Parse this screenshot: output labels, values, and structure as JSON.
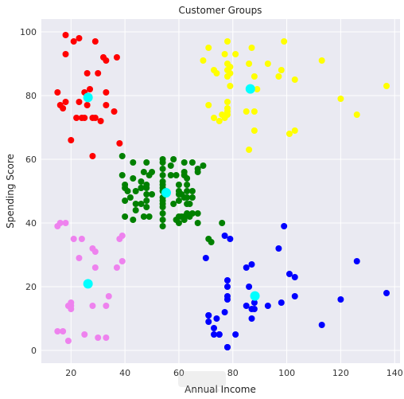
{
  "chart_data": {
    "type": "scatter",
    "title": "Customer Groups",
    "xlabel": "Annual Income",
    "ylabel": "Spending Score",
    "xlim": [
      9,
      142
    ],
    "ylim": [
      -4,
      104
    ],
    "xticks": [
      20,
      40,
      60,
      80,
      100,
      120,
      140
    ],
    "yticks": [
      0,
      20,
      40,
      60,
      80,
      100
    ],
    "grid": true,
    "background": "#eaeaf2",
    "series": [
      {
        "color": "#ff0000",
        "points": [
          [
            18,
            99
          ],
          [
            18,
            93
          ],
          [
            21,
            97
          ],
          [
            23,
            98
          ],
          [
            24,
            73
          ],
          [
            25,
            73
          ],
          [
            26,
            87
          ],
          [
            26,
            77
          ],
          [
            27,
            82
          ],
          [
            28,
            61
          ],
          [
            28,
            73
          ],
          [
            29,
            97
          ],
          [
            29,
            73
          ],
          [
            30,
            87
          ],
          [
            32,
            92
          ],
          [
            33,
            91
          ],
          [
            33,
            81
          ],
          [
            33,
            77
          ],
          [
            36,
            75
          ],
          [
            37,
            92
          ],
          [
            38,
            65
          ],
          [
            15,
            81
          ],
          [
            16,
            77
          ],
          [
            17,
            76
          ],
          [
            20,
            66
          ],
          [
            22,
            73
          ],
          [
            23,
            78
          ],
          [
            25,
            81
          ],
          [
            31,
            72
          ],
          [
            18,
            78
          ]
        ]
      },
      {
        "color": "#ffff00",
        "points": [
          [
            69,
            91
          ],
          [
            71,
            95
          ],
          [
            71,
            77
          ],
          [
            73,
            88
          ],
          [
            73,
            73
          ],
          [
            74,
            87
          ],
          [
            75,
            72
          ],
          [
            76,
            74
          ],
          [
            77,
            93
          ],
          [
            77,
            73
          ],
          [
            78,
            97
          ],
          [
            78,
            90
          ],
          [
            78,
            88
          ],
          [
            78,
            86
          ],
          [
            78,
            78
          ],
          [
            78,
            76
          ],
          [
            78,
            75
          ],
          [
            78,
            74
          ],
          [
            79,
            87
          ],
          [
            79,
            89
          ],
          [
            79,
            83
          ],
          [
            81,
            93
          ],
          [
            85,
            75
          ],
          [
            86,
            90
          ],
          [
            86,
            63
          ],
          [
            87,
            95
          ],
          [
            88,
            75
          ],
          [
            88,
            69
          ],
          [
            88,
            86
          ],
          [
            89,
            82
          ],
          [
            93,
            90
          ],
          [
            97,
            86
          ],
          [
            98,
            88
          ],
          [
            99,
            97
          ],
          [
            101,
            68
          ],
          [
            103,
            85
          ],
          [
            103,
            69
          ],
          [
            113,
            91
          ],
          [
            120,
            79
          ],
          [
            126,
            74
          ],
          [
            137,
            83
          ]
        ]
      },
      {
        "color": "#008000",
        "points": [
          [
            39,
            61
          ],
          [
            39,
            55
          ],
          [
            40,
            47
          ],
          [
            40,
            42
          ],
          [
            40,
            52
          ],
          [
            40,
            51
          ],
          [
            41,
            50
          ],
          [
            42,
            48
          ],
          [
            43,
            54
          ],
          [
            43,
            59
          ],
          [
            43,
            41
          ],
          [
            44,
            50
          ],
          [
            44,
            46
          ],
          [
            46,
            51
          ],
          [
            46,
            46
          ],
          [
            46,
            53
          ],
          [
            47,
            56
          ],
          [
            47,
            42
          ],
          [
            48,
            52
          ],
          [
            48,
            59
          ],
          [
            48,
            51
          ],
          [
            48,
            49
          ],
          [
            48,
            47
          ],
          [
            48,
            45
          ],
          [
            49,
            55
          ],
          [
            49,
            42
          ],
          [
            50,
            49
          ],
          [
            50,
            56
          ],
          [
            54,
            60
          ],
          [
            54,
            47
          ],
          [
            54,
            53
          ],
          [
            54,
            55
          ],
          [
            54,
            46
          ],
          [
            54,
            52
          ],
          [
            54,
            50
          ],
          [
            54,
            43
          ],
          [
            54,
            41
          ],
          [
            54,
            48
          ],
          [
            54,
            59
          ],
          [
            54,
            45
          ],
          [
            54,
            39
          ],
          [
            54,
            57
          ],
          [
            54,
            51
          ],
          [
            57,
            58
          ],
          [
            57,
            55
          ],
          [
            58,
            60
          ],
          [
            58,
            46
          ],
          [
            59,
            55
          ],
          [
            59,
            41
          ],
          [
            60,
            49
          ],
          [
            60,
            40
          ],
          [
            60,
            42
          ],
          [
            60,
            52
          ],
          [
            60,
            47
          ],
          [
            60,
            50
          ],
          [
            61,
            42
          ],
          [
            61,
            49
          ],
          [
            62,
            41
          ],
          [
            62,
            48
          ],
          [
            62,
            59
          ],
          [
            62,
            55
          ],
          [
            62,
            56
          ],
          [
            62,
            42
          ],
          [
            63,
            50
          ],
          [
            63,
            46
          ],
          [
            63,
            43
          ],
          [
            63,
            48
          ],
          [
            63,
            52
          ],
          [
            63,
            54
          ],
          [
            64,
            42
          ],
          [
            64,
            46
          ],
          [
            65,
            48
          ],
          [
            65,
            50
          ],
          [
            65,
            43
          ],
          [
            65,
            59
          ],
          [
            67,
            43
          ],
          [
            67,
            57
          ],
          [
            67,
            56
          ],
          [
            67,
            40
          ],
          [
            69,
            58
          ],
          [
            71,
            35
          ],
          [
            72,
            34
          ],
          [
            76,
            40
          ],
          [
            44,
            44
          ],
          [
            46,
            51
          ]
        ]
      },
      {
        "color": "#ee82ee",
        "points": [
          [
            15,
            39
          ],
          [
            16,
            40
          ],
          [
            17,
            6
          ],
          [
            18,
            40
          ],
          [
            19,
            3
          ],
          [
            19,
            14
          ],
          [
            20,
            15
          ],
          [
            20,
            13
          ],
          [
            21,
            35
          ],
          [
            23,
            29
          ],
          [
            24,
            35
          ],
          [
            25,
            5
          ],
          [
            28,
            14
          ],
          [
            28,
            32
          ],
          [
            29,
            31
          ],
          [
            30,
            4
          ],
          [
            33,
            4
          ],
          [
            33,
            14
          ],
          [
            34,
            17
          ],
          [
            37,
            26
          ],
          [
            38,
            35
          ],
          [
            39,
            36
          ],
          [
            39,
            28
          ],
          [
            15,
            6
          ],
          [
            20,
            14
          ],
          [
            29,
            26
          ]
        ]
      },
      {
        "color": "#0000ff",
        "points": [
          [
            70,
            29
          ],
          [
            71,
            11
          ],
          [
            71,
            9
          ],
          [
            73,
            5
          ],
          [
            73,
            7
          ],
          [
            74,
            10
          ],
          [
            75,
            5
          ],
          [
            77,
            12
          ],
          [
            77,
            36
          ],
          [
            78,
            22
          ],
          [
            78,
            17
          ],
          [
            78,
            20
          ],
          [
            78,
            16
          ],
          [
            78,
            1
          ],
          [
            78,
            1
          ],
          [
            79,
            35
          ],
          [
            81,
            5
          ],
          [
            85,
            26
          ],
          [
            86,
            20
          ],
          [
            87,
            27
          ],
          [
            87,
            13
          ],
          [
            87,
            10
          ],
          [
            88,
            13
          ],
          [
            88,
            15
          ],
          [
            93,
            14
          ],
          [
            97,
            32
          ],
          [
            98,
            15
          ],
          [
            99,
            39
          ],
          [
            101,
            24
          ],
          [
            103,
            17
          ],
          [
            103,
            23
          ],
          [
            113,
            8
          ],
          [
            120,
            16
          ],
          [
            126,
            28
          ],
          [
            137,
            18
          ],
          [
            75,
            5
          ],
          [
            85,
            14
          ],
          [
            71,
            11
          ]
        ]
      }
    ],
    "centroids": {
      "color": "#00ffff",
      "points": [
        [
          26.3,
          79.4
        ],
        [
          86.5,
          82.1
        ],
        [
          55.3,
          49.5
        ],
        [
          26.3,
          20.9
        ],
        [
          88.2,
          17.1
        ]
      ]
    }
  },
  "watermark": "مستقل"
}
